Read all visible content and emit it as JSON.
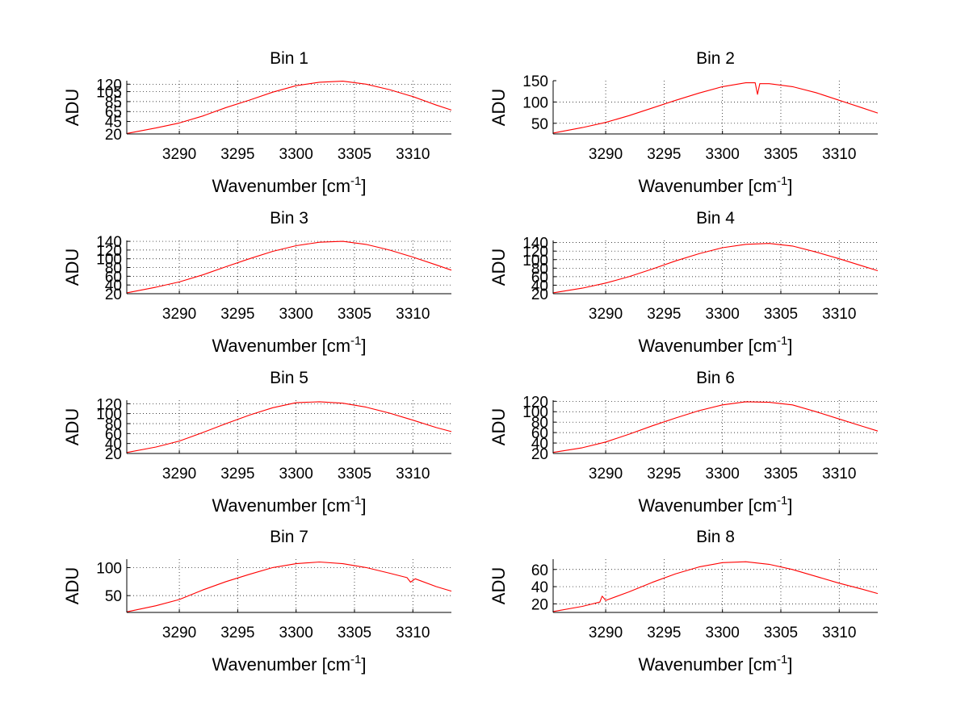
{
  "chart_data": [
    {
      "type": "line",
      "title": "Bin 1",
      "xlabel": "Wavenumber [cm",
      "xlabel_sup": "-1",
      "xlabel_end": "]",
      "ylabel": "ADU",
      "xlim": [
        3285.5,
        3313.3
      ],
      "ylim": [
        20,
        127
      ],
      "xticks": [
        3290,
        3295,
        3300,
        3305,
        3310
      ],
      "yticks": [
        20,
        45,
        65,
        85,
        105,
        120
      ],
      "grid": true,
      "series": [
        {
          "color": "#ff0000",
          "x": [
            3285.5,
            3288,
            3290,
            3292,
            3294,
            3296,
            3298,
            3300,
            3302,
            3304,
            3306,
            3308,
            3310,
            3312,
            3313.3
          ],
          "y": [
            21,
            32,
            42,
            56,
            73,
            88,
            104,
            117,
            124,
            126,
            120,
            109,
            95,
            78,
            68
          ]
        }
      ]
    },
    {
      "type": "line",
      "title": "Bin 2",
      "xlabel": "Wavenumber [cm",
      "xlabel_sup": "-1",
      "xlabel_end": "]",
      "ylabel": "ADU",
      "xlim": [
        3285.5,
        3313.3
      ],
      "ylim": [
        25,
        150
      ],
      "xticks": [
        3290,
        3295,
        3300,
        3305,
        3310
      ],
      "yticks": [
        50,
        100,
        150
      ],
      "grid": true,
      "series": [
        {
          "color": "#ff0000",
          "x": [
            3285.5,
            3288,
            3290,
            3292,
            3294,
            3296,
            3298,
            3300,
            3302,
            3302.8,
            3303,
            3303.2,
            3304,
            3306,
            3308,
            3310,
            3312,
            3313.3
          ],
          "y": [
            27,
            40,
            52,
            68,
            86,
            104,
            121,
            136,
            145,
            145,
            118,
            143,
            143,
            136,
            122,
            104,
            86,
            74
          ]
        }
      ]
    },
    {
      "type": "line",
      "title": "Bin 3",
      "xlabel": "Wavenumber [cm",
      "xlabel_sup": "-1",
      "xlabel_end": "]",
      "ylabel": "ADU",
      "xlim": [
        3285.5,
        3313.3
      ],
      "ylim": [
        20,
        142
      ],
      "xticks": [
        3290,
        3295,
        3300,
        3305,
        3310
      ],
      "yticks": [
        20,
        40,
        60,
        80,
        100,
        120,
        140
      ],
      "grid": true,
      "series": [
        {
          "color": "#ff0000",
          "x": [
            3285.5,
            3288,
            3290,
            3292,
            3294,
            3296,
            3298,
            3300,
            3302,
            3304,
            3306,
            3308,
            3310,
            3312,
            3313.3
          ],
          "y": [
            22,
            35,
            47,
            63,
            82,
            100,
            117,
            130,
            138,
            140,
            133,
            120,
            104,
            86,
            74
          ]
        }
      ]
    },
    {
      "type": "line",
      "title": "Bin 4",
      "xlabel": "Wavenumber [cm",
      "xlabel_sup": "-1",
      "xlabel_end": "]",
      "ylabel": "ADU",
      "xlim": [
        3285.5,
        3313.3
      ],
      "ylim": [
        20,
        145
      ],
      "xticks": [
        3290,
        3295,
        3300,
        3305,
        3310
      ],
      "yticks": [
        20,
        40,
        60,
        80,
        100,
        120,
        140
      ],
      "grid": true,
      "series": [
        {
          "color": "#ff0000",
          "x": [
            3285.5,
            3288,
            3290,
            3292,
            3294,
            3296,
            3298,
            3300,
            3302,
            3304,
            3306,
            3308,
            3310,
            3312,
            3313.3
          ],
          "y": [
            22,
            33,
            45,
            60,
            78,
            97,
            114,
            128,
            136,
            138,
            132,
            118,
            102,
            85,
            74
          ]
        }
      ]
    },
    {
      "type": "line",
      "title": "Bin 5",
      "xlabel": "Wavenumber [cm",
      "xlabel_sup": "-1",
      "xlabel_end": "]",
      "ylabel": "ADU",
      "xlim": [
        3285.5,
        3313.3
      ],
      "ylim": [
        20,
        127
      ],
      "xticks": [
        3290,
        3295,
        3300,
        3305,
        3310
      ],
      "yticks": [
        20,
        40,
        60,
        80,
        100,
        120
      ],
      "grid": true,
      "series": [
        {
          "color": "#ff0000",
          "x": [
            3285.5,
            3288,
            3290,
            3292,
            3294,
            3296,
            3298,
            3300,
            3302,
            3304,
            3306,
            3308,
            3310,
            3312,
            3313.3
          ],
          "y": [
            22,
            33,
            45,
            62,
            80,
            97,
            112,
            122,
            124,
            121,
            113,
            101,
            87,
            72,
            64
          ]
        }
      ]
    },
    {
      "type": "line",
      "title": "Bin 6",
      "xlabel": "Wavenumber [cm",
      "xlabel_sup": "-1",
      "xlabel_end": "]",
      "ylabel": "ADU",
      "xlim": [
        3285.5,
        3313.3
      ],
      "ylim": [
        20,
        122
      ],
      "xticks": [
        3290,
        3295,
        3300,
        3305,
        3310
      ],
      "yticks": [
        20,
        40,
        60,
        80,
        100,
        120
      ],
      "grid": true,
      "series": [
        {
          "color": "#ff0000",
          "x": [
            3285.5,
            3288,
            3290,
            3292,
            3294,
            3296,
            3298,
            3300,
            3302,
            3304,
            3306,
            3308,
            3310,
            3312,
            3313.3
          ],
          "y": [
            22,
            31,
            42,
            57,
            73,
            88,
            102,
            113,
            119,
            118,
            113,
            100,
            86,
            72,
            63
          ]
        }
      ]
    },
    {
      "type": "line",
      "title": "Bin 7",
      "xlabel": "Wavenumber [cm",
      "xlabel_sup": "-1",
      "xlabel_end": "]",
      "ylabel": "ADU",
      "xlim": [
        3285.5,
        3313.3
      ],
      "ylim": [
        20,
        115
      ],
      "xticks": [
        3290,
        3295,
        3300,
        3305,
        3310
      ],
      "yticks": [
        50,
        100
      ],
      "grid": true,
      "series": [
        {
          "color": "#ff0000",
          "x": [
            3285.5,
            3288,
            3290,
            3292,
            3294,
            3296,
            3298,
            3300,
            3302,
            3304,
            3306,
            3308,
            3309.5,
            3309.8,
            3310.2,
            3312,
            3313.3
          ],
          "y": [
            21,
            32,
            43,
            60,
            75,
            88,
            100,
            107,
            110,
            107,
            100,
            90,
            82,
            74,
            80,
            66,
            58
          ]
        }
      ]
    },
    {
      "type": "line",
      "title": "Bin 8",
      "xlabel": "Wavenumber [cm",
      "xlabel_sup": "-1",
      "xlabel_end": "]",
      "ylabel": "ADU",
      "xlim": [
        3285.5,
        3313.3
      ],
      "ylim": [
        10,
        72
      ],
      "xticks": [
        3290,
        3295,
        3300,
        3305,
        3310
      ],
      "yticks": [
        20,
        40,
        60
      ],
      "grid": true,
      "series": [
        {
          "color": "#ff0000",
          "x": [
            3285.5,
            3288,
            3289.5,
            3289.7,
            3290,
            3292,
            3294,
            3296,
            3298,
            3300,
            3302,
            3304,
            3306,
            3308,
            3310,
            3312,
            3313.3
          ],
          "y": [
            11,
            17,
            22,
            29,
            24,
            34,
            45,
            55,
            63,
            68,
            69,
            66,
            60,
            52,
            44,
            37,
            32
          ]
        }
      ]
    }
  ]
}
